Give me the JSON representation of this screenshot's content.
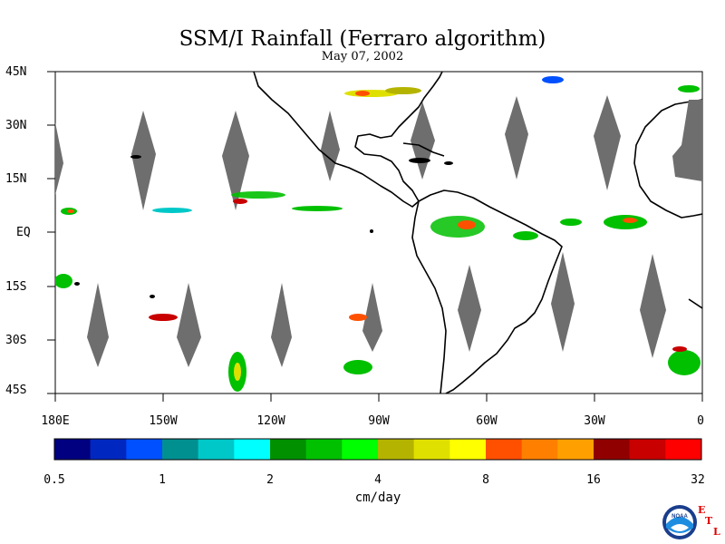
{
  "title": "SSM/I Rainfall (Ferraro algorithm)",
  "date": "May 07, 2002",
  "map": {
    "lat_labels": [
      "45N",
      "30N",
      "15N",
      "EQ",
      "15S",
      "30S",
      "45S"
    ],
    "lon_labels": [
      "180E",
      "150W",
      "120W",
      "90W",
      "60W",
      "30W",
      "0"
    ],
    "extent": {
      "lon_min": -180,
      "lon_max": 0,
      "lat_min": -45,
      "lat_max": 45
    },
    "missing_swath_color": "#6e6e6e",
    "land_outline_color": "#000000"
  },
  "colorbar": {
    "colors": [
      "#000080",
      "#0028c0",
      "#0050ff",
      "#009090",
      "#00c8c8",
      "#00ffff",
      "#009000",
      "#00c000",
      "#00ff00",
      "#b4b400",
      "#e0e000",
      "#ffff00",
      "#ff5000",
      "#ff8000",
      "#ffa000",
      "#900000",
      "#c80000",
      "#ff0000"
    ],
    "tick_labels": [
      "0.5",
      "1",
      "2",
      "4",
      "8",
      "16",
      "32"
    ],
    "units": "cm/day"
  },
  "logo": {
    "noaa_text": "NOAA",
    "etl_letters": [
      "E",
      "T",
      "L"
    ]
  }
}
